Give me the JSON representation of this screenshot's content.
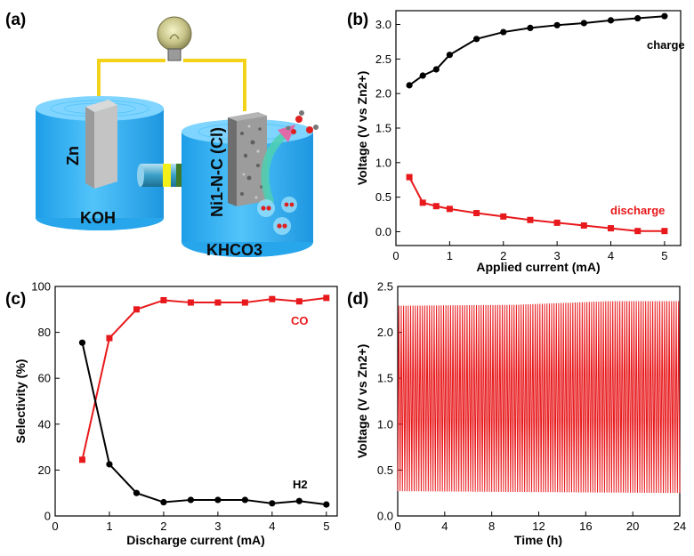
{
  "panel_labels": [
    "(a)",
    "(b)",
    "(c)",
    "(d)"
  ],
  "schematic": {
    "anode_label": "Zn",
    "anolyte_label": "KOH",
    "cathode_label": "Ni1-N-C (Cl)",
    "catholyte_label": "KHCO3"
  },
  "colors": {
    "black_series": "#000000",
    "red_series": "#e8191c",
    "electrolyte": "#3fb8f5"
  },
  "chart_data": [
    {
      "panel": "(b)",
      "type": "line",
      "xlabel": "Applied current (mA)",
      "ylabel": "Voltage (V vs Zn2+)",
      "xlim": [
        0,
        5.3
      ],
      "ylim": [
        -0.2,
        3.2
      ],
      "xticks": [
        "0",
        "1",
        "2",
        "3",
        "4",
        "5"
      ],
      "yticks": [
        "0.0",
        "0.5",
        "1.0",
        "1.5",
        "2.0",
        "2.5",
        "3.0"
      ],
      "series": [
        {
          "name": "charge",
          "color": "#000000",
          "marker": "circle",
          "x": [
            0.25,
            0.5,
            0.75,
            1.0,
            1.5,
            2.0,
            2.5,
            3.0,
            3.5,
            4.0,
            4.5,
            5.0
          ],
          "y": [
            2.12,
            2.26,
            2.35,
            2.56,
            2.79,
            2.89,
            2.95,
            2.99,
            3.02,
            3.06,
            3.09,
            3.12
          ]
        },
        {
          "name": "discharge",
          "color": "#e8191c",
          "marker": "square",
          "x": [
            0.25,
            0.5,
            0.75,
            1.0,
            1.5,
            2.0,
            2.5,
            3.0,
            3.5,
            4.0,
            4.5,
            5.0
          ],
          "y": [
            0.79,
            0.42,
            0.37,
            0.33,
            0.27,
            0.22,
            0.17,
            0.13,
            0.09,
            0.05,
            0.01,
            0.01
          ]
        }
      ]
    },
    {
      "panel": "(c)",
      "type": "line",
      "xlabel": "Discharge current (mA)",
      "ylabel": "Selectivity (%)",
      "xlim": [
        0,
        5.2
      ],
      "ylim": [
        0,
        100
      ],
      "xticks": [
        "0",
        "1",
        "2",
        "3",
        "4",
        "5"
      ],
      "yticks": [
        "0",
        "20",
        "40",
        "60",
        "80",
        "100"
      ],
      "series": [
        {
          "name": "CO",
          "color": "#e8191c",
          "marker": "square",
          "x": [
            0.5,
            1.0,
            1.5,
            2.0,
            2.5,
            3.0,
            3.5,
            4.0,
            4.5,
            5.0
          ],
          "y": [
            24.5,
            77.5,
            90.0,
            94.0,
            93.0,
            93.0,
            93.0,
            94.5,
            93.5,
            95.0
          ]
        },
        {
          "name": "H2",
          "color": "#000000",
          "marker": "circle",
          "x": [
            0.5,
            1.0,
            1.5,
            2.0,
            2.5,
            3.0,
            3.5,
            4.0,
            4.5,
            5.0
          ],
          "y": [
            75.5,
            22.5,
            10.0,
            6.0,
            7.0,
            7.0,
            7.0,
            5.5,
            6.5,
            5.0
          ]
        }
      ]
    },
    {
      "panel": "(d)",
      "type": "line",
      "xlabel": "Time (h)",
      "ylabel": "Voltage (V vs Zn2+)",
      "xlim": [
        0,
        24
      ],
      "ylim": [
        0,
        2.5
      ],
      "xticks": [
        "0",
        "4",
        "8",
        "12",
        "16",
        "20",
        "24"
      ],
      "yticks": [
        "0.0",
        "0.5",
        "1.0",
        "1.5",
        "2.0",
        "2.5"
      ],
      "series": [
        {
          "name": "",
          "color": "#e8191c",
          "style": "cycling",
          "cycle_period_h": 0.2,
          "upper_voltage": [
            [
              0,
              2.29
            ],
            [
              10,
              2.3
            ],
            [
              18,
              2.34
            ],
            [
              24,
              2.34
            ]
          ],
          "lower_voltage": [
            [
              0,
              0.27
            ],
            [
              24,
              0.25
            ]
          ]
        }
      ]
    }
  ]
}
